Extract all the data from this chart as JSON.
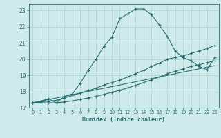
{
  "xlabel": "Humidex (Indice chaleur)",
  "bg_color": "#ceeaea",
  "grid_color": "#aed4d4",
  "line_color": "#2a7070",
  "xlim": [
    -0.5,
    23.5
  ],
  "ylim": [
    17,
    23.4
  ],
  "xticks": [
    0,
    1,
    2,
    3,
    4,
    5,
    6,
    7,
    8,
    9,
    10,
    11,
    12,
    13,
    14,
    15,
    16,
    17,
    18,
    19,
    20,
    21,
    22,
    23
  ],
  "yticks": [
    17,
    18,
    19,
    20,
    21,
    22,
    23
  ],
  "curve1_x": [
    0,
    1,
    2,
    3,
    4,
    5,
    6,
    7,
    8,
    9,
    10,
    11,
    12,
    13,
    14,
    15,
    16,
    17,
    18,
    19,
    20,
    21,
    22,
    23
  ],
  "curve1_y": [
    17.3,
    17.4,
    17.55,
    17.3,
    17.7,
    17.85,
    18.5,
    19.3,
    20.0,
    20.8,
    21.35,
    22.5,
    22.8,
    23.1,
    23.1,
    22.75,
    22.1,
    21.4,
    20.5,
    20.1,
    19.9,
    19.55,
    19.35,
    20.1
  ],
  "curve2_x": [
    0,
    1,
    2,
    3,
    4,
    5,
    6,
    7,
    8,
    9,
    10,
    11,
    12,
    13,
    14,
    15,
    16,
    17,
    18,
    19,
    20,
    21,
    22,
    23
  ],
  "curve2_y": [
    17.3,
    17.35,
    17.4,
    17.45,
    17.6,
    17.75,
    17.9,
    18.05,
    18.2,
    18.4,
    18.55,
    18.7,
    18.9,
    19.1,
    19.3,
    19.55,
    19.75,
    20.0,
    20.1,
    20.2,
    20.35,
    20.5,
    20.65,
    20.85
  ],
  "curve3_x": [
    0,
    1,
    2,
    3,
    4,
    5,
    6,
    7,
    8,
    9,
    10,
    11,
    12,
    13,
    14,
    15,
    16,
    17,
    18,
    19,
    20,
    21,
    22,
    23
  ],
  "curve3_y": [
    17.3,
    17.3,
    17.3,
    17.3,
    17.35,
    17.42,
    17.5,
    17.6,
    17.7,
    17.82,
    17.95,
    18.08,
    18.22,
    18.38,
    18.55,
    18.72,
    18.9,
    19.1,
    19.25,
    19.4,
    19.55,
    19.65,
    19.78,
    19.9
  ],
  "curve4_x": [
    0,
    23
  ],
  "curve4_y": [
    17.3,
    19.6
  ]
}
